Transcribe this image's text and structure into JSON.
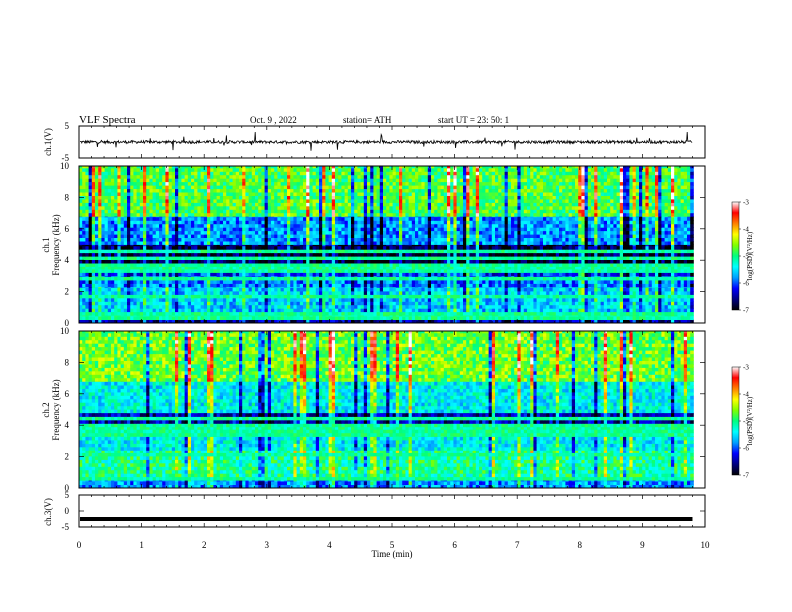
{
  "header": {
    "title": "VLF  Spectra",
    "date": "Oct. 9  , 2022",
    "station": "station= ATH",
    "start_ut": "start  UT  =    23: 50: 1"
  },
  "chart_data": [
    {
      "type": "line",
      "panel": "ch1-waveform",
      "ylabel": "ch.1(V)",
      "ylim": [
        -5,
        5
      ],
      "y_ticks": [
        "5",
        "-5"
      ],
      "xlim": [
        0,
        10
      ],
      "baseline_v": 0,
      "noise_amplitude_v": 1,
      "data_end_min": 9.8,
      "line_color": "#000000"
    },
    {
      "type": "heatmap",
      "panel": "ch1-spectrogram",
      "ylabel": "ch.1\nFrequency  (kHz)",
      "ylim": [
        0,
        10
      ],
      "y_ticks": [
        "0",
        "2",
        "4",
        "6",
        "8",
        "10"
      ],
      "xlim": [
        0,
        10
      ],
      "data_end_min": 9.8,
      "bands": [
        {
          "from_khz": 0.0,
          "to_khz": 0.5,
          "level": 0.12
        },
        {
          "from_khz": 0.5,
          "to_khz": 2.3,
          "level": 0.36
        },
        {
          "from_khz": 2.3,
          "to_khz": 3.0,
          "level": 0.28
        },
        {
          "from_khz": 3.0,
          "to_khz": 3.6,
          "level": 0.22
        },
        {
          "from_khz": 3.6,
          "to_khz": 5.0,
          "level": 0.06
        },
        {
          "from_khz": 5.0,
          "to_khz": 6.8,
          "level": 0.3
        },
        {
          "from_khz": 6.8,
          "to_khz": 10.0,
          "level": 0.55
        }
      ]
    },
    {
      "type": "heatmap",
      "panel": "ch2-spectrogram",
      "ylabel": "ch.2\nFrequency  (kHz)",
      "ylim": [
        0,
        10
      ],
      "y_ticks": [
        "0",
        "2",
        "4",
        "6",
        "8",
        "10"
      ],
      "xlim": [
        0,
        10
      ],
      "data_end_min": 9.8,
      "bands": [
        {
          "from_khz": 0.0,
          "to_khz": 0.5,
          "level": 0.3
        },
        {
          "from_khz": 0.5,
          "to_khz": 2.4,
          "level": 0.48
        },
        {
          "from_khz": 2.4,
          "to_khz": 3.3,
          "level": 0.4
        },
        {
          "from_khz": 3.3,
          "to_khz": 3.9,
          "level": 0.34
        },
        {
          "from_khz": 3.9,
          "to_khz": 4.8,
          "level": 0.14
        },
        {
          "from_khz": 4.8,
          "to_khz": 6.8,
          "level": 0.4
        },
        {
          "from_khz": 6.8,
          "to_khz": 10.0,
          "level": 0.58
        }
      ]
    },
    {
      "type": "line",
      "panel": "ch3-waveform",
      "ylabel": "ch.3(V)",
      "ylim": [
        -5,
        5
      ],
      "y_ticks": [
        "5",
        "0",
        "-5"
      ],
      "xlim": [
        0,
        10
      ],
      "baseline_v": -2.5,
      "data_end_min": 9.8,
      "line_color": "#000000"
    }
  ],
  "x_axis": {
    "label": "Time  (min)",
    "ticks": [
      "0",
      "1",
      "2",
      "3",
      "4",
      "5",
      "6",
      "7",
      "8",
      "9",
      "10"
    ]
  },
  "colorbar": {
    "label": "log(PSD)(V²/Hz)",
    "ticks": [
      "-3",
      "-4",
      "-5",
      "-6",
      "-7"
    ],
    "range": [
      -7,
      -3
    ],
    "colors": [
      "#000000",
      "#000080",
      "#0000ff",
      "#00a0ff",
      "#00ffff",
      "#00ff80",
      "#80ff00",
      "#ffff00",
      "#ff8000",
      "#ff0000",
      "#ffffff"
    ]
  }
}
